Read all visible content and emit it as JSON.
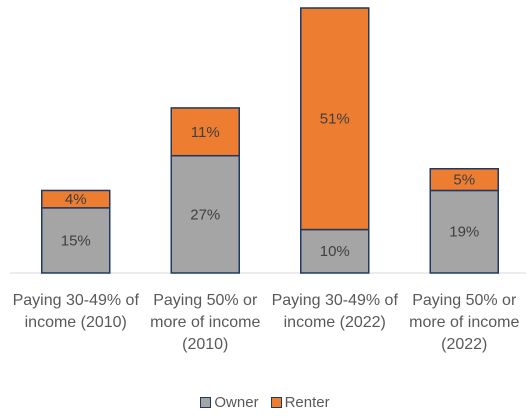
{
  "chart_data": {
    "type": "stacked_bar",
    "categories": [
      "Paying 30-49% of income (2010)",
      "Paying 50% or more of income (2010)",
      "Paying 30-49% of income (2022)",
      "Paying 50% or more of income (2022)"
    ],
    "series": [
      {
        "name": "Owner",
        "color": "#a5a5a5",
        "values": [
          15,
          27,
          10,
          19
        ],
        "value_labels": [
          "15%",
          "27%",
          "10%",
          "19%"
        ]
      },
      {
        "name": "Renter",
        "color": "#ed7d31",
        "values": [
          4,
          11,
          51,
          5
        ],
        "value_labels": [
          "4%",
          "11%",
          "51%",
          "5%"
        ]
      }
    ],
    "legend": "bottom"
  }
}
